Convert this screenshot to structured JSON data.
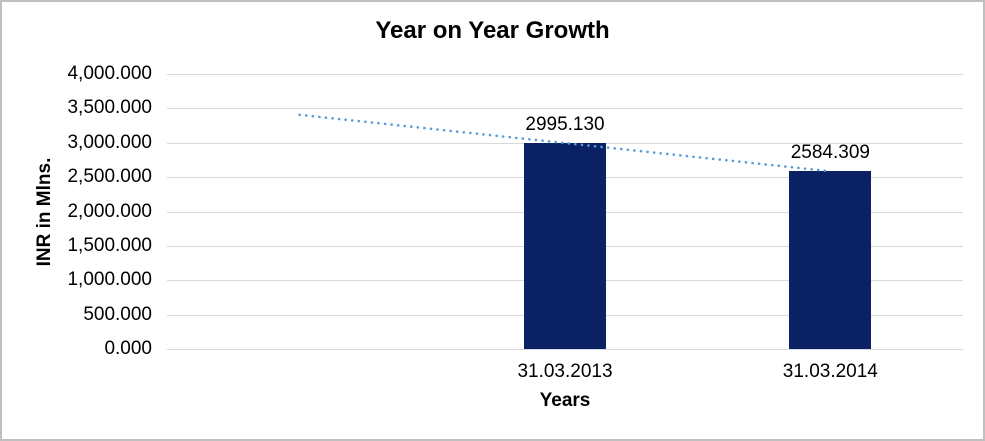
{
  "frame": {
    "background": "#FFFFFF",
    "border_color": "#BFBFBF"
  },
  "chart_data": {
    "type": "bar",
    "title": "Year on Year Growth",
    "xlabel": "Years",
    "ylabel": "INR in Mlns.",
    "categories": [
      "31.03.2013",
      "31.03.2014"
    ],
    "values": [
      2995.13,
      2584.309
    ],
    "data_labels": [
      "2995.130",
      "2584.309"
    ],
    "ylim": [
      0,
      4000
    ],
    "ytick_step": 500,
    "ytick_labels": [
      "0.000",
      "500.000",
      "1,000.000",
      "1,500.000",
      "2,000.000",
      "2,500.000",
      "3,000.000",
      "3,500.000",
      "4,000.000"
    ],
    "grid": true,
    "legend": "none",
    "bar_color": "#0A2264",
    "gridline_color": "#D9D9D9",
    "category_slots": 3,
    "bar_slots": [
      2,
      3
    ],
    "trendline": {
      "style": "dotted",
      "color": "#5B9BD5",
      "slot_span": [
        1,
        3
      ],
      "values": [
        3405.95,
        2584.309
      ]
    }
  }
}
